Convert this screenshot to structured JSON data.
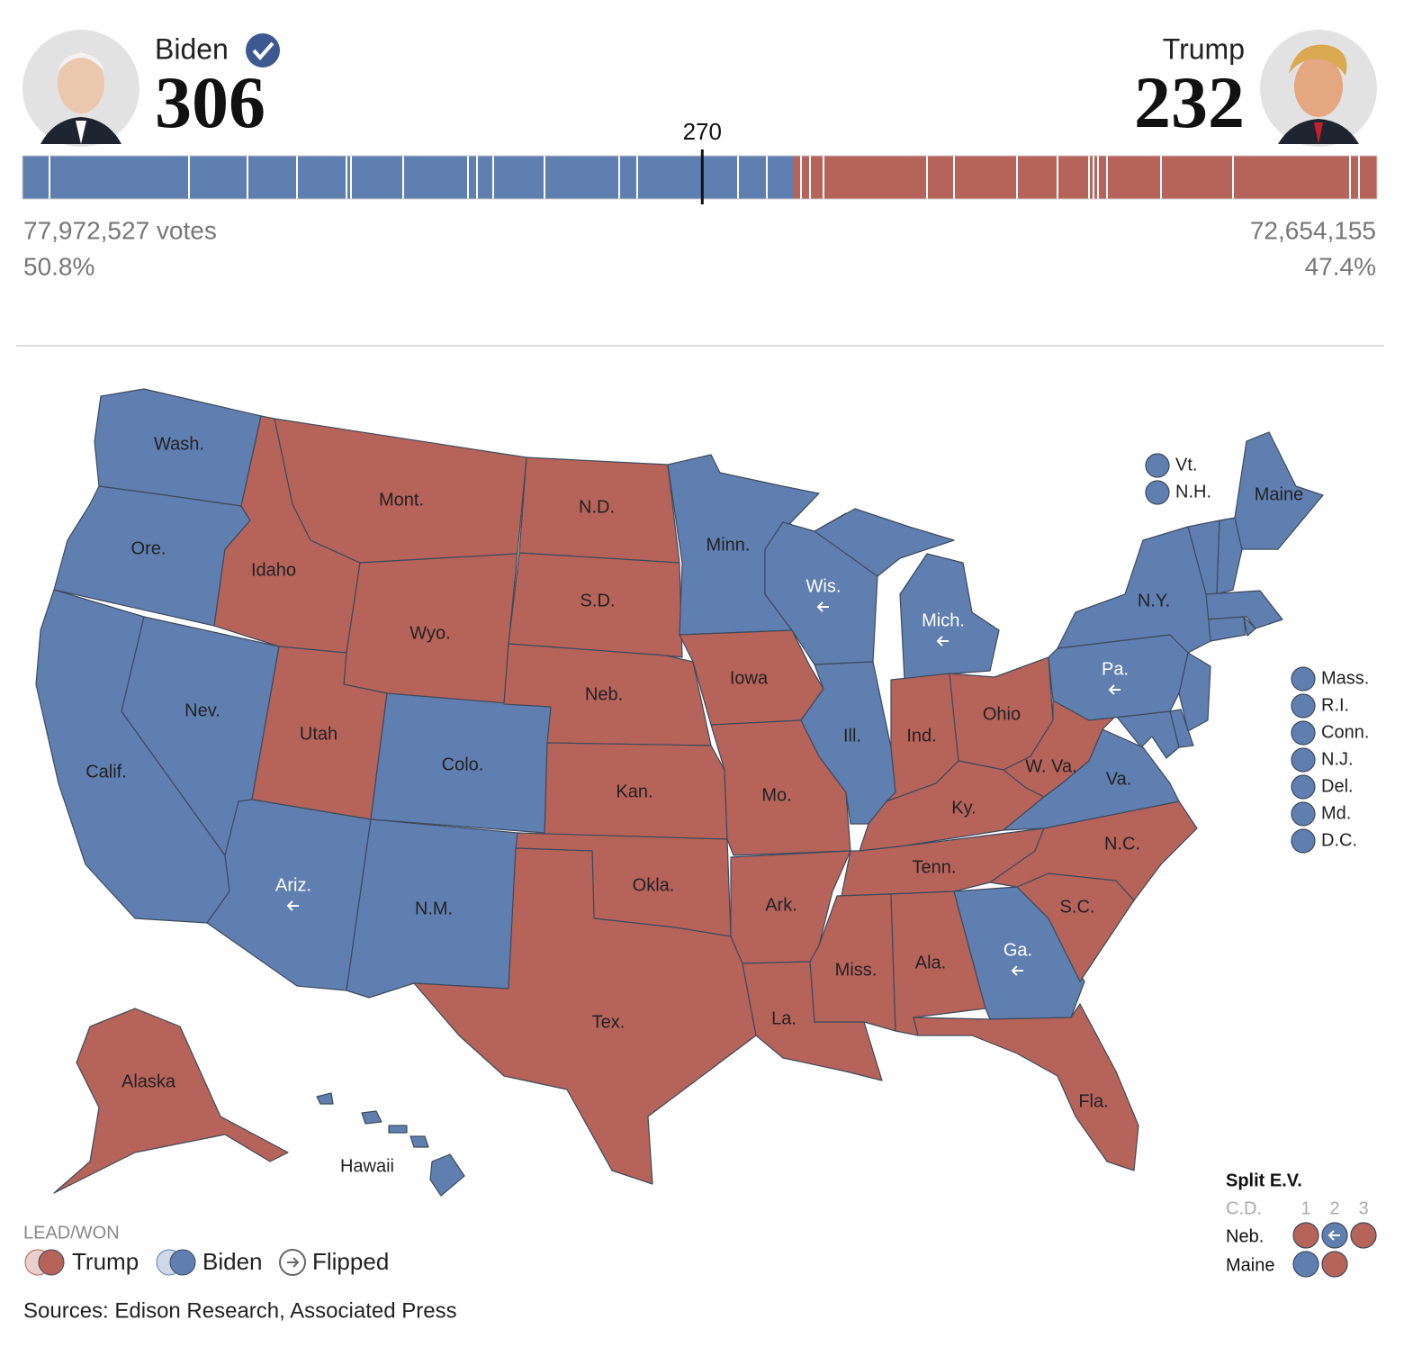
{
  "header": {
    "candidates": [
      {
        "name": "Biden",
        "ev": 306,
        "votes": "77,972,527 votes",
        "pct": "50.8%",
        "color": "#5f7fb0"
      },
      {
        "name": "Trump",
        "ev": 232,
        "votes": "72,654,155",
        "pct": "47.4%",
        "color": "#b6635a"
      }
    ],
    "threshold": 270
  },
  "map": {
    "states": [
      {
        "label": "Wash.",
        "color": "#5f7fb0"
      },
      {
        "label": "Ore.",
        "color": "#5f7fb0"
      },
      {
        "label": "Calif.",
        "color": "#5f7fb0"
      },
      {
        "label": "Nev.",
        "color": "#5f7fb0"
      },
      {
        "label": "Idaho",
        "color": "#b6635a"
      },
      {
        "label": "Mont.",
        "color": "#b6635a"
      },
      {
        "label": "Wyo.",
        "color": "#b6635a"
      },
      {
        "label": "Utah",
        "color": "#b6635a"
      },
      {
        "label": "Colo.",
        "color": "#5f7fb0"
      },
      {
        "label": "Ariz.",
        "color": "#5f7fb0",
        "flipped": true
      },
      {
        "label": "N.M.",
        "color": "#5f7fb0"
      },
      {
        "label": "N.D.",
        "color": "#b6635a"
      },
      {
        "label": "S.D.",
        "color": "#b6635a"
      },
      {
        "label": "Neb.",
        "color": "#b6635a"
      },
      {
        "label": "Kan.",
        "color": "#b6635a"
      },
      {
        "label": "Okla.",
        "color": "#b6635a"
      },
      {
        "label": "Tex.",
        "color": "#b6635a"
      },
      {
        "label": "Minn.",
        "color": "#5f7fb0"
      },
      {
        "label": "Iowa",
        "color": "#b6635a"
      },
      {
        "label": "Mo.",
        "color": "#b6635a"
      },
      {
        "label": "Ark.",
        "color": "#b6635a"
      },
      {
        "label": "La.",
        "color": "#b6635a"
      },
      {
        "label": "Wis.",
        "color": "#5f7fb0",
        "flipped": true
      },
      {
        "label": "Ill.",
        "color": "#5f7fb0"
      },
      {
        "label": "Mich.",
        "color": "#5f7fb0",
        "flipped": true
      },
      {
        "label": "Ind.",
        "color": "#b6635a"
      },
      {
        "label": "Ohio",
        "color": "#b6635a"
      },
      {
        "label": "Ky.",
        "color": "#b6635a"
      },
      {
        "label": "Tenn.",
        "color": "#b6635a"
      },
      {
        "label": "Miss.",
        "color": "#b6635a"
      },
      {
        "label": "Ala.",
        "color": "#b6635a"
      },
      {
        "label": "Ga.",
        "color": "#5f7fb0",
        "flipped": true
      },
      {
        "label": "Fla.",
        "color": "#b6635a"
      },
      {
        "label": "S.C.",
        "color": "#b6635a"
      },
      {
        "label": "N.C.",
        "color": "#b6635a"
      },
      {
        "label": "Va.",
        "color": "#5f7fb0"
      },
      {
        "label": "W. Va.",
        "color": "#b6635a"
      },
      {
        "label": "Pa.",
        "color": "#5f7fb0",
        "flipped": true
      },
      {
        "label": "N.Y.",
        "color": "#5f7fb0"
      },
      {
        "label": "Maine",
        "color": "#5f7fb0"
      },
      {
        "label": "Alaska",
        "color": "#b6635a"
      },
      {
        "label": "Hawaii",
        "color": "#5f7fb0"
      }
    ],
    "small_states": [
      {
        "label": "Vt.",
        "color": "#5f7fb0"
      },
      {
        "label": "N.H.",
        "color": "#5f7fb0"
      },
      {
        "label": "Mass.",
        "color": "#5f7fb0"
      },
      {
        "label": "R.I.",
        "color": "#5f7fb0"
      },
      {
        "label": "Conn.",
        "color": "#5f7fb0"
      },
      {
        "label": "N.J.",
        "color": "#5f7fb0"
      },
      {
        "label": "Del.",
        "color": "#5f7fb0"
      },
      {
        "label": "Md.",
        "color": "#5f7fb0"
      },
      {
        "label": "D.C.",
        "color": "#5f7fb0"
      }
    ]
  },
  "split_ev": {
    "title": "Split E.V.",
    "header": "C.D.",
    "districts": [
      1,
      2,
      3
    ],
    "rows": [
      {
        "label": "Neb.",
        "colors": [
          "#b6635a",
          "#5f7fb0",
          "#b6635a"
        ],
        "flipped": [
          false,
          true,
          false
        ]
      },
      {
        "label": "Maine",
        "colors": [
          "#5f7fb0",
          "#b6635a"
        ],
        "flipped": [
          false,
          false
        ]
      }
    ]
  },
  "legend": {
    "title": "LEAD/WON",
    "items": [
      "Trump",
      "Biden",
      "Flipped"
    ]
  },
  "sources": "Sources: Edison Research, Associated Press"
}
